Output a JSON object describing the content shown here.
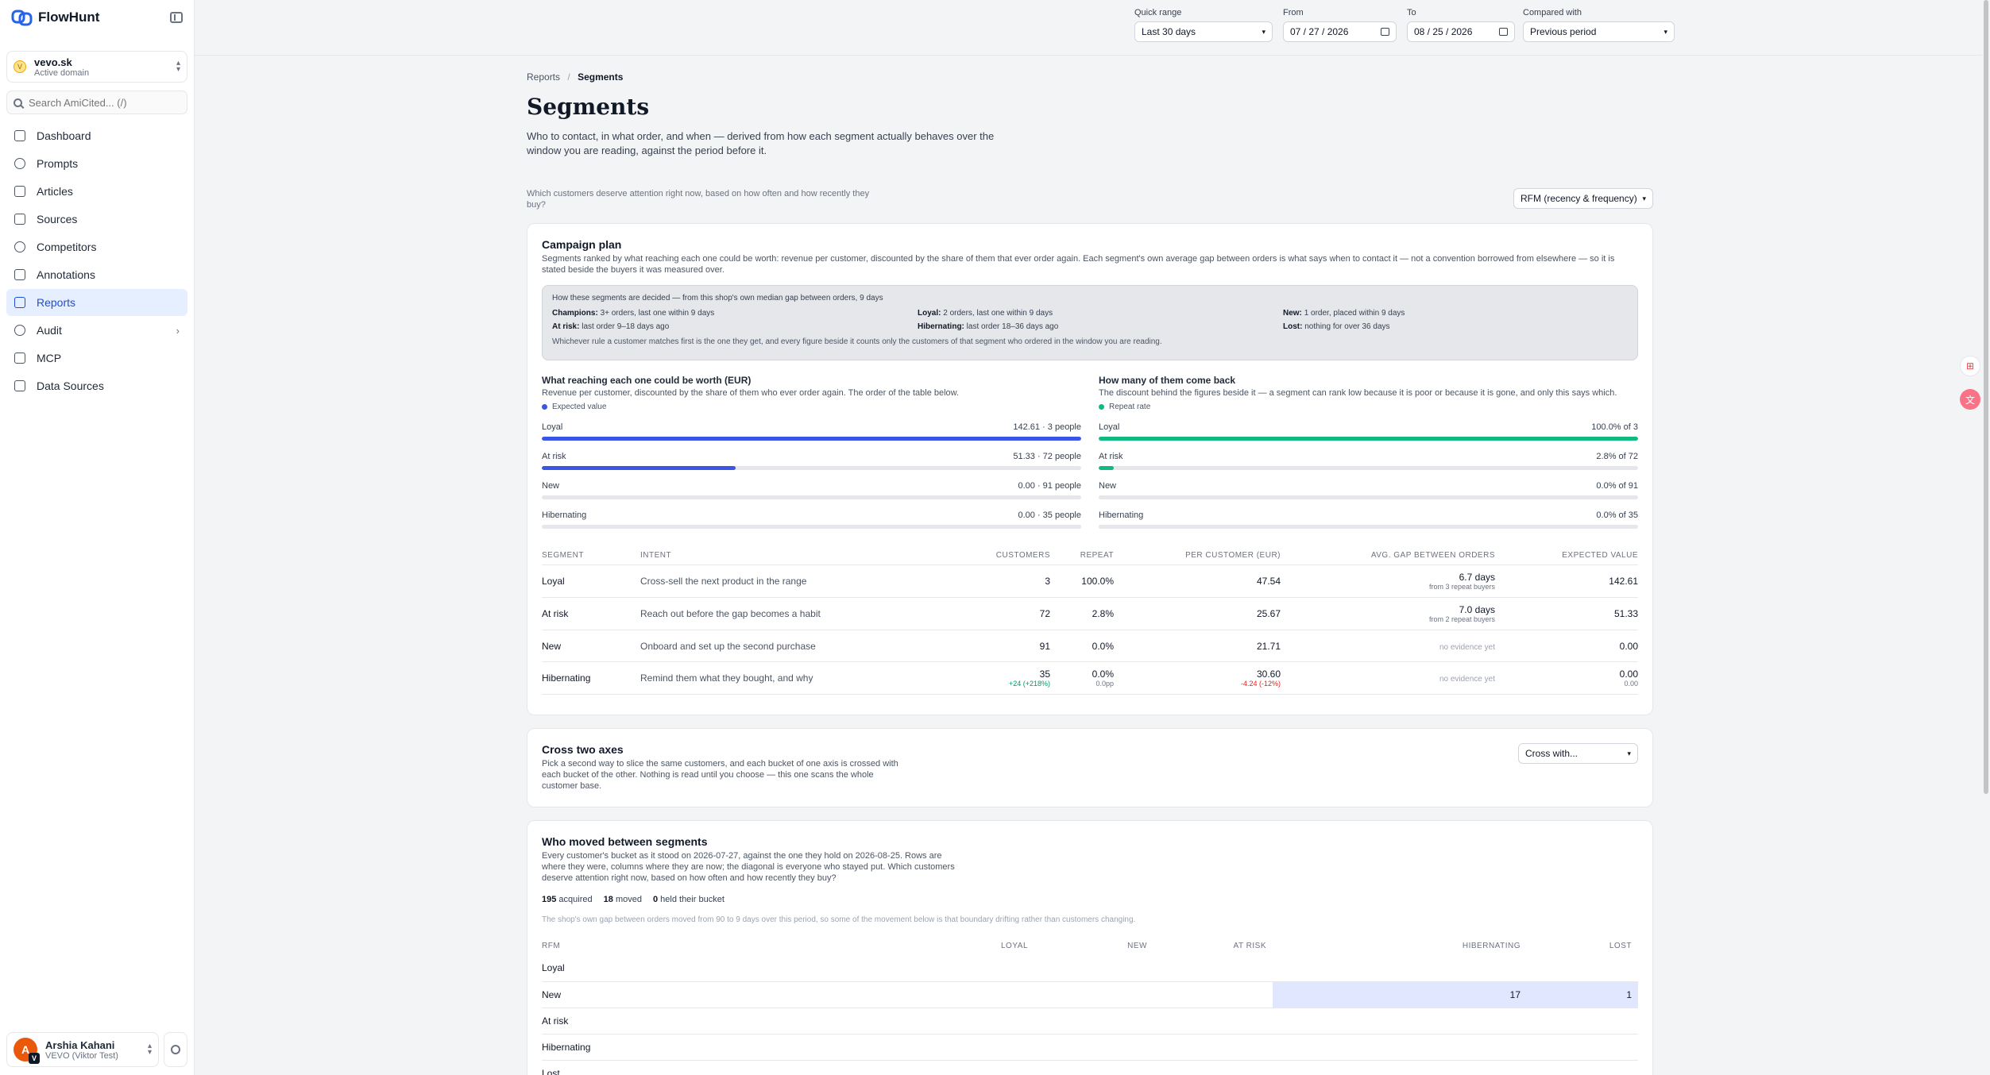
{
  "app": {
    "name": "FlowHunt"
  },
  "domain": {
    "name": "vevo.sk",
    "status": "Active domain",
    "initial": "V"
  },
  "search": {
    "placeholder": "Search AmiCited... (/)"
  },
  "nav": [
    {
      "label": "Dashboard",
      "icon": "dashboard-icon",
      "active": false
    },
    {
      "label": "Prompts",
      "icon": "prompts-icon",
      "active": false
    },
    {
      "label": "Articles",
      "icon": "articles-icon",
      "active": false
    },
    {
      "label": "Sources",
      "icon": "sources-icon",
      "active": false
    },
    {
      "label": "Competitors",
      "icon": "competitors-icon",
      "active": false
    },
    {
      "label": "Annotations",
      "icon": "annotations-icon",
      "active": false
    },
    {
      "label": "Reports",
      "icon": "reports-icon",
      "active": true
    },
    {
      "label": "Audit",
      "icon": "audit-icon",
      "active": false,
      "chevron": "›"
    },
    {
      "label": "MCP",
      "icon": "mcp-icon",
      "active": false
    },
    {
      "label": "Data Sources",
      "icon": "data-sources-icon",
      "active": false
    }
  ],
  "user": {
    "name": "Arshia Kahani",
    "org": "VEVO (Viktor Test)",
    "initial": "A",
    "badge": "V"
  },
  "filters": {
    "quick_range_label": "Quick range",
    "quick_range_value": "Last 30 days",
    "from_label": "From",
    "from_value": "07 / 27 / 2026",
    "to_label": "To",
    "to_value": "08 / 25 / 2026",
    "compare_label": "Compared with",
    "compare_value": "Previous period"
  },
  "breadcrumb": {
    "parent": "Reports",
    "sep": "/",
    "current": "Segments"
  },
  "page": {
    "title": "Segments",
    "description": "Who to contact, in what order, and when — derived from how each segment actually behaves over the window you are reading, against the period before it.",
    "question": "Which customers deserve attention right now, based on how often and how recently they buy?",
    "segmentation_select": "RFM (recency & frequency)"
  },
  "campaign": {
    "title": "Campaign plan",
    "description": "Segments ranked by what reaching each one could be worth: revenue per customer, discounted by the share of them that ever order again. Each segment's own average gap between orders is what says when to contact it — not a convention borrowed from elsewhere — so it is stated beside the buyers it was measured over.",
    "rules_title": "How these segments are decided — from this shop's own median gap between orders, 9 days",
    "rules": [
      {
        "name": "Champions:",
        "text": "3+ orders, last one within 9 days"
      },
      {
        "name": "Loyal:",
        "text": "2 orders, last one within 9 days"
      },
      {
        "name": "New:",
        "text": "1 order, placed within 9 days"
      },
      {
        "name": "At risk:",
        "text": "last order 9–18 days ago"
      },
      {
        "name": "Hibernating:",
        "text": "last order 18–36 days ago"
      },
      {
        "name": "Lost:",
        "text": "nothing for over 36 days"
      }
    ],
    "rules_footer": "Whichever rule a customer matches first is the one they get, and every figure beside it counts only the customers of that segment who ordered in the window you are reading.",
    "worth": {
      "title": "What reaching each one could be worth (EUR)",
      "description": "Revenue per customer, discounted by the share of them who ever order again. The order of the table below.",
      "legend": "Expected value",
      "color": "#3b55e6",
      "bars": [
        {
          "label": "Loyal",
          "value_text": "142.61 · 3 people",
          "fraction": 1.0
        },
        {
          "label": "At risk",
          "value_text": "51.33 · 72 people",
          "fraction": 0.36
        },
        {
          "label": "New",
          "value_text": "0.00 · 91 people",
          "fraction": 0
        },
        {
          "label": "Hibernating",
          "value_text": "0.00 · 35 people",
          "fraction": 0
        }
      ]
    },
    "comeback": {
      "title": "How many of them come back",
      "description": "The discount behind the figures beside it — a segment can rank low because it is poor or because it is gone, and only this says which.",
      "legend": "Repeat rate",
      "color": "#10b981",
      "bars": [
        {
          "label": "Loyal",
          "value_text": "100.0% of 3",
          "fraction": 1.0
        },
        {
          "label": "At risk",
          "value_text": "2.8% of 72",
          "fraction": 0.028
        },
        {
          "label": "New",
          "value_text": "0.0% of 91",
          "fraction": 0
        },
        {
          "label": "Hibernating",
          "value_text": "0.0% of 35",
          "fraction": 0
        }
      ]
    },
    "table": {
      "headers": [
        "SEGMENT",
        "INTENT",
        "CUSTOMERS",
        "REPEAT",
        "PER CUSTOMER (EUR)",
        "AVG. GAP BETWEEN ORDERS",
        "EXPECTED VALUE"
      ],
      "rows": [
        {
          "segment": "Loyal",
          "intent": "Cross-sell the next product in the range",
          "customers": "3",
          "customers_sub": "",
          "repeat": "100.0%",
          "repeat_sub": "",
          "per_customer": "47.54",
          "per_sub": "",
          "gap": "6.7 days",
          "gap_sub": "from 3 repeat buyers",
          "expected": "142.61",
          "expected_sub": ""
        },
        {
          "segment": "At risk",
          "intent": "Reach out before the gap becomes a habit",
          "customers": "72",
          "customers_sub": "",
          "repeat": "2.8%",
          "repeat_sub": "",
          "per_customer": "25.67",
          "per_sub": "",
          "gap": "7.0 days",
          "gap_sub": "from 2 repeat buyers",
          "expected": "51.33",
          "expected_sub": ""
        },
        {
          "segment": "New",
          "intent": "Onboard and set up the second purchase",
          "customers": "91",
          "customers_sub": "",
          "repeat": "0.0%",
          "repeat_sub": "",
          "per_customer": "21.71",
          "per_sub": "",
          "gap": "",
          "gap_sub": "no evidence yet",
          "expected": "0.00",
          "expected_sub": ""
        },
        {
          "segment": "Hibernating",
          "intent": "Remind them what they bought, and why",
          "customers": "35",
          "customers_sub": "+24 (+218%)",
          "repeat": "0.0%",
          "repeat_sub": "0.0pp",
          "per_customer": "30.60",
          "per_sub": "-4.24 (-12%)",
          "gap": "",
          "gap_sub": "no evidence yet",
          "expected": "0.00",
          "expected_sub": "0.00"
        }
      ]
    }
  },
  "cross": {
    "title": "Cross two axes",
    "description": "Pick a second way to slice the same customers, and each bucket of one axis is crossed with each bucket of the other. Nothing is read until you choose — this one scans the whole customer base.",
    "select": "Cross with..."
  },
  "moved": {
    "title": "Who moved between segments",
    "description": "Every customer's bucket as it stood on 2026-07-27, against the one they hold on 2026-08-25. Rows are where they were, columns where they are now; the diagonal is everyone who stayed put. Which customers deserve attention right now, based on how often and how recently they buy?",
    "stats": [
      {
        "value": "195",
        "label": "acquired"
      },
      {
        "value": "18",
        "label": "moved"
      },
      {
        "value": "0",
        "label": "held their bucket"
      }
    ],
    "note": "The shop's own gap between orders moved from 90 to 9 days over this period, so some of the movement below is that boundary drifting rather than customers changing.",
    "headers": [
      "RFM",
      "LOYAL",
      "NEW",
      "AT RISK",
      "HIBERNATING",
      "LOST"
    ],
    "rows": [
      {
        "label": "Loyal",
        "cells": [
          "",
          "",
          "",
          "",
          ""
        ]
      },
      {
        "label": "New",
        "cells": [
          "",
          "",
          "",
          "17",
          "1"
        ]
      },
      {
        "label": "At risk",
        "cells": [
          "",
          "",
          "",
          "",
          ""
        ]
      },
      {
        "label": "Hibernating",
        "cells": [
          "",
          "",
          "",
          "",
          ""
        ]
      },
      {
        "label": "Lost",
        "cells": [
          "",
          "",
          "",
          "",
          ""
        ]
      }
    ]
  },
  "side_tools": [
    "grid-plus-icon",
    "translate-icon"
  ]
}
